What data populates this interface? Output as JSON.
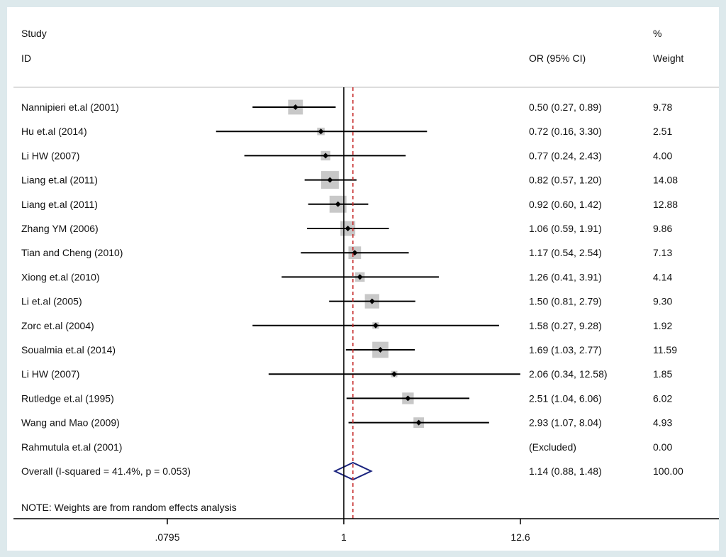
{
  "header": {
    "study_line1": "Study",
    "study_line2": "ID",
    "or_header": "OR (95% CI)",
    "weight_line1": "%",
    "weight_line2": "Weight"
  },
  "note": "NOTE: Weights are from random effects analysis",
  "colors": {
    "frame_background": "#dde9ec",
    "panel_background": "#ffffff",
    "weight_box": "#c8c8c8",
    "point": "#000000",
    "ci_line": "#000000",
    "overall_diamond": "#1a237e",
    "overall_line": "#c62828"
  },
  "chart_data": {
    "type": "forest",
    "xscale": "log",
    "xticks": [
      {
        "value": 0.0795,
        "label": ".0795"
      },
      {
        "value": 1,
        "label": "1"
      },
      {
        "value": 12.6,
        "label": "12.6"
      }
    ],
    "xlim": [
      0.0795,
      12.6
    ],
    "null_line": 1,
    "studies": [
      {
        "label": "Nannipieri et.al (2001)",
        "or": 0.5,
        "lo": 0.27,
        "hi": 0.89,
        "or_text": "0.50 (0.27, 0.89)",
        "weight": 9.78,
        "weight_text": "9.78"
      },
      {
        "label": "Hu et.al (2014)",
        "or": 0.72,
        "lo": 0.16,
        "hi": 3.3,
        "or_text": "0.72 (0.16, 3.30)",
        "weight": 2.51,
        "weight_text": "2.51"
      },
      {
        "label": "Li HW  (2007)",
        "or": 0.77,
        "lo": 0.24,
        "hi": 2.43,
        "or_text": "0.77 (0.24, 2.43)",
        "weight": 4.0,
        "weight_text": "4.00"
      },
      {
        "label": "Liang et.al (2011)",
        "or": 0.82,
        "lo": 0.57,
        "hi": 1.2,
        "or_text": "0.82 (0.57, 1.20)",
        "weight": 14.08,
        "weight_text": "14.08"
      },
      {
        "label": "Liang et.al (2011)",
        "or": 0.92,
        "lo": 0.6,
        "hi": 1.42,
        "or_text": "0.92 (0.60, 1.42)",
        "weight": 12.88,
        "weight_text": "12.88"
      },
      {
        "label": "Zhang YM  (2006)",
        "or": 1.06,
        "lo": 0.59,
        "hi": 1.91,
        "or_text": "1.06 (0.59, 1.91)",
        "weight": 9.86,
        "weight_text": "9.86"
      },
      {
        "label": "Tian and Cheng (2010)",
        "or": 1.17,
        "lo": 0.54,
        "hi": 2.54,
        "or_text": "1.17 (0.54, 2.54)",
        "weight": 7.13,
        "weight_text": "7.13"
      },
      {
        "label": "Xiong et.al (2010)",
        "or": 1.26,
        "lo": 0.41,
        "hi": 3.91,
        "or_text": "1.26 (0.41, 3.91)",
        "weight": 4.14,
        "weight_text": "4.14"
      },
      {
        "label": "Li et.al (2005)",
        "or": 1.5,
        "lo": 0.81,
        "hi": 2.79,
        "or_text": "1.50 (0.81, 2.79)",
        "weight": 9.3,
        "weight_text": "9.30"
      },
      {
        "label": "Zorc et.al (2004)",
        "or": 1.58,
        "lo": 0.27,
        "hi": 9.28,
        "or_text": "1.58 (0.27, 9.28)",
        "weight": 1.92,
        "weight_text": "1.92"
      },
      {
        "label": "Soualmia et.al (2014)",
        "or": 1.69,
        "lo": 1.03,
        "hi": 2.77,
        "or_text": "1.69 (1.03, 2.77)",
        "weight": 11.59,
        "weight_text": "11.59"
      },
      {
        "label": "Li HW  (2007)",
        "or": 2.06,
        "lo": 0.34,
        "hi": 12.58,
        "or_text": "2.06 (0.34, 12.58)",
        "weight": 1.85,
        "weight_text": "1.85"
      },
      {
        "label": "Rutledge et.al (1995)",
        "or": 2.51,
        "lo": 1.04,
        "hi": 6.06,
        "or_text": "2.51 (1.04, 6.06)",
        "weight": 6.02,
        "weight_text": "6.02"
      },
      {
        "label": "Wang and Mao (2009)",
        "or": 2.93,
        "lo": 1.07,
        "hi": 8.04,
        "or_text": "2.93 (1.07, 8.04)",
        "weight": 4.93,
        "weight_text": "4.93"
      },
      {
        "label": "Rahmutula et.al (2001)",
        "or": null,
        "lo": null,
        "hi": null,
        "or_text": "(Excluded)",
        "weight": 0.0,
        "weight_text": "0.00"
      }
    ],
    "overall": {
      "label": "Overall  (I-squared = 41.4%, p = 0.053)",
      "or": 1.14,
      "lo": 0.88,
      "hi": 1.48,
      "or_text": "1.14 (0.88, 1.48)",
      "weight": 100.0,
      "weight_text": "100.00"
    }
  }
}
